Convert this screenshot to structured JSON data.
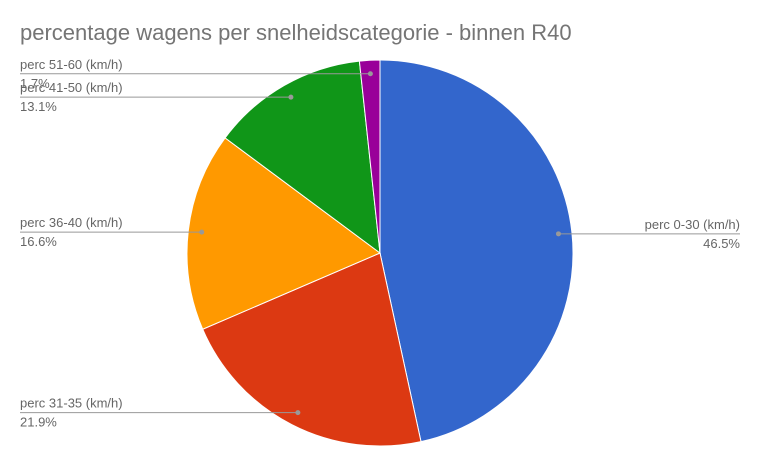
{
  "chart_data": {
    "type": "pie",
    "title": "percentage wagens per snelheidscategorie - binnen R40",
    "categories": [
      "perc 0-30 (km/h)",
      "perc 31-35 (km/h)",
      "perc 36-40 (km/h)",
      "perc 41-50 (km/h)",
      "perc 51-60 (km/h)"
    ],
    "values": [
      46.5,
      21.9,
      16.6,
      13.1,
      1.7
    ],
    "value_labels": [
      "46.5%",
      "21.9%",
      "16.6%",
      "13.1%",
      "1.7%"
    ],
    "colors": [
      "#3366cc",
      "#dc3912",
      "#ff9900",
      "#109618",
      "#990099"
    ]
  }
}
